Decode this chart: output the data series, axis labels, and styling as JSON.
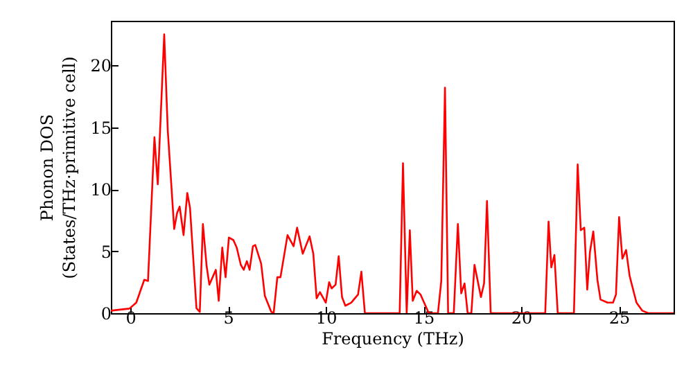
{
  "chart_data": {
    "type": "line",
    "xlabel": "Frequency (THz)",
    "ylabel": "Phonon DOS\n(States/THz·primitive cell)",
    "xlim": [
      -1,
      27.8
    ],
    "ylim": [
      0,
      23.6
    ],
    "xticks": [
      0,
      5,
      10,
      15,
      20,
      25
    ],
    "yticks": [
      0,
      5,
      10,
      15,
      20
    ],
    "grid": false,
    "marker": "none",
    "line_style": "solid",
    "series": [
      {
        "color": "#ff0000",
        "x": [
          -1,
          -0.05,
          0.3,
          0.71,
          0.9,
          1.23,
          1.4,
          1.73,
          1.91,
          2.24,
          2.39,
          2.52,
          2.72,
          2.91,
          3.05,
          3.38,
          3.55,
          3.71,
          3.9,
          4.04,
          4.37,
          4.52,
          4.7,
          4.87,
          5.04,
          5.27,
          5.44,
          5.65,
          5.8,
          5.96,
          6.1,
          6.27,
          6.39,
          6.69,
          6.88,
          7.21,
          7.33,
          7.52,
          7.68,
          8.04,
          8.35,
          8.53,
          8.82,
          9.17,
          9.36,
          9.53,
          9.7,
          10.0,
          10.17,
          10.3,
          10.5,
          10.66,
          10.83,
          11.0,
          11.3,
          11.65,
          11.82,
          12.0,
          13.78,
          13.95,
          14.14,
          14.3,
          14.45,
          14.65,
          14.85,
          15.27,
          15.74,
          15.91,
          16.1,
          16.26,
          16.55,
          16.76,
          16.93,
          17.1,
          17.26,
          17.45,
          17.61,
          17.94,
          18.1,
          18.25,
          18.44,
          21.23,
          21.4,
          21.54,
          21.7,
          21.87,
          22.7,
          22.89,
          23.05,
          23.23,
          23.38,
          23.52,
          23.69,
          23.9,
          24.06,
          24.42,
          24.7,
          24.85,
          25.01,
          25.18,
          25.37,
          25.55,
          25.9,
          26.2,
          26.5,
          27.8
        ],
        "values": [
          0.2,
          0.37,
          0.85,
          2.7,
          2.6,
          14.2,
          10.4,
          22.5,
          14.8,
          6.8,
          8.1,
          8.6,
          6.3,
          9.7,
          8.5,
          0.4,
          0.1,
          7.2,
          3.8,
          2.3,
          3.5,
          1.0,
          5.3,
          2.9,
          6.1,
          5.9,
          5.3,
          3.9,
          3.5,
          4.2,
          3.5,
          5.4,
          5.5,
          4.0,
          1.4,
          0.1,
          0,
          2.9,
          2.9,
          6.3,
          5.4,
          6.9,
          4.8,
          6.2,
          4.8,
          1.2,
          1.7,
          0.85,
          2.5,
          2.0,
          2.3,
          4.6,
          1.3,
          0.6,
          0.85,
          1.5,
          3.35,
          0,
          0,
          12.1,
          0,
          6.7,
          1.0,
          1.8,
          1.5,
          0,
          0,
          2.6,
          18.2,
          0,
          0,
          7.2,
          1.6,
          2.4,
          0,
          0,
          3.9,
          1.3,
          2.4,
          9.05,
          0,
          0,
          7.4,
          3.7,
          4.7,
          0,
          0,
          12.0,
          6.7,
          6.9,
          1.9,
          4.95,
          6.6,
          2.7,
          1.1,
          0.85,
          0.85,
          1.5,
          7.75,
          4.4,
          5.1,
          3.0,
          0.85,
          0.2,
          0,
          0
        ]
      }
    ]
  }
}
